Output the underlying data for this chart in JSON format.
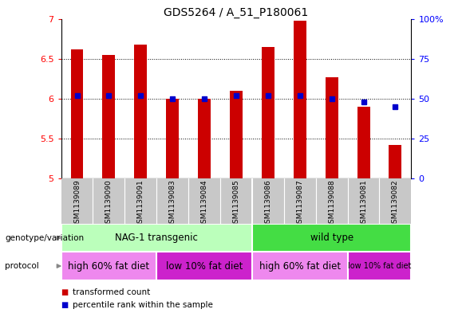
{
  "title": "GDS5264 / A_51_P180061",
  "samples": [
    "GSM1139089",
    "GSM1139090",
    "GSM1139091",
    "GSM1139083",
    "GSM1139084",
    "GSM1139085",
    "GSM1139086",
    "GSM1139087",
    "GSM1139088",
    "GSM1139081",
    "GSM1139082"
  ],
  "transformed_count": [
    6.62,
    6.55,
    6.68,
    6.0,
    5.995,
    6.1,
    6.65,
    6.98,
    6.27,
    5.9,
    5.42
  ],
  "percentile_values": [
    52,
    52,
    52,
    50,
    50,
    52,
    52,
    52,
    50,
    48,
    45
  ],
  "ylim_left": [
    5.0,
    7.0
  ],
  "ylim_right": [
    0,
    100
  ],
  "yticks_left": [
    5.0,
    5.5,
    6.0,
    6.5,
    7.0
  ],
  "ytick_labels_left": [
    "5",
    "5.5",
    "6",
    "6.5",
    "7"
  ],
  "yticks_right": [
    0,
    25,
    50,
    75,
    100
  ],
  "ytick_labels_right": [
    "0",
    "25",
    "50",
    "75",
    "100%"
  ],
  "bar_color": "#cc0000",
  "dot_color": "#0000cc",
  "bar_bottom": 5.0,
  "bar_width": 0.4,
  "plot_bg": "#ffffff",
  "label_bg": "#c8c8c8",
  "genotype_row": [
    {
      "label": "NAG-1 transgenic",
      "start": 0,
      "end": 6,
      "color": "#bbffbb"
    },
    {
      "label": "wild type",
      "start": 6,
      "end": 11,
      "color": "#44dd44"
    }
  ],
  "protocol_row": [
    {
      "label": "high 60% fat diet",
      "start": 0,
      "end": 3,
      "color": "#ee88ee"
    },
    {
      "label": "low 10% fat diet",
      "start": 3,
      "end": 6,
      "color": "#cc22cc"
    },
    {
      "label": "high 60% fat diet",
      "start": 6,
      "end": 9,
      "color": "#ee88ee"
    },
    {
      "label": "low 10% fat diet",
      "start": 9,
      "end": 11,
      "color": "#cc22cc"
    }
  ],
  "left_labels": [
    "genotype/variation",
    "protocol"
  ],
  "legend": [
    {
      "label": "transformed count",
      "color": "#cc0000"
    },
    {
      "label": "percentile rank within the sample",
      "color": "#0000cc"
    }
  ]
}
